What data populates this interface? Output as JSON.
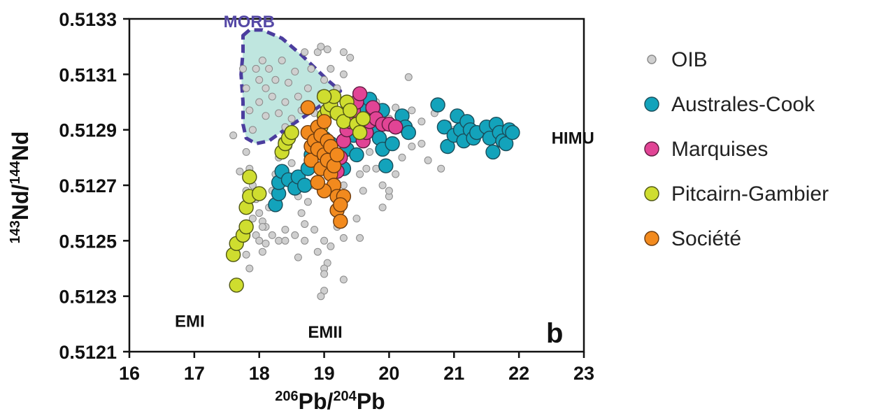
{
  "chart_data": {
    "type": "scatter",
    "xlabel": "206Pb/204Pb",
    "ylabel": "143Nd/144Nd",
    "xlim": [
      16,
      23
    ],
    "ylim": [
      0.5121,
      0.5133
    ],
    "x_ticks": [
      "16",
      "17",
      "18",
      "19",
      "20",
      "21",
      "22",
      "23"
    ],
    "y_ticks": [
      "0.5121",
      "0.5123",
      "0.5125",
      "0.5127",
      "0.5129",
      "0.5131",
      "0.5133"
    ],
    "panel_label": "b",
    "annotations": [
      {
        "text": "MORB",
        "x": 17.45,
        "y": 0.51327
      },
      {
        "text": "HIMU",
        "x": 22.5,
        "y": 0.51285
      },
      {
        "text": "EMI",
        "x": 16.7,
        "y": 0.51219
      },
      {
        "text": "EMII",
        "x": 18.75,
        "y": 0.51215
      }
    ],
    "morb_field": {
      "label": "MORB",
      "fill": "#bfe6df",
      "stroke": "#4b3d9e",
      "outline": [
        [
          17.75,
          0.51324
        ],
        [
          17.85,
          0.51326
        ],
        [
          18.05,
          0.51326
        ],
        [
          18.35,
          0.51323
        ],
        [
          18.65,
          0.51317
        ],
        [
          19.05,
          0.51308
        ],
        [
          19.25,
          0.51304
        ],
        [
          18.9,
          0.51298
        ],
        [
          18.45,
          0.51291
        ],
        [
          18.15,
          0.51286
        ],
        [
          17.95,
          0.51285
        ],
        [
          17.8,
          0.51287
        ],
        [
          17.75,
          0.51292
        ],
        [
          17.75,
          0.513
        ],
        [
          17.72,
          0.5131
        ],
        [
          17.75,
          0.51318
        ]
      ]
    },
    "series": [
      {
        "name": "OIB",
        "color": "#cfcfcf",
        "stroke": "#8a8a8a",
        "size": "small",
        "points": [
          [
            17.6,
            0.51288
          ],
          [
            17.75,
            0.51312
          ],
          [
            17.8,
            0.51305
          ],
          [
            17.85,
            0.51297
          ],
          [
            17.9,
            0.5129
          ],
          [
            17.95,
            0.51312
          ],
          [
            18.0,
            0.51308
          ],
          [
            18.0,
            0.513
          ],
          [
            18.05,
            0.51315
          ],
          [
            18.1,
            0.51305
          ],
          [
            18.1,
            0.51295
          ],
          [
            18.15,
            0.51312
          ],
          [
            18.2,
            0.51302
          ],
          [
            18.25,
            0.51308
          ],
          [
            18.3,
            0.51296
          ],
          [
            18.35,
            0.51315
          ],
          [
            18.4,
            0.513
          ],
          [
            18.45,
            0.51307
          ],
          [
            18.5,
            0.51294
          ],
          [
            18.55,
            0.51311
          ],
          [
            18.6,
            0.51302
          ],
          [
            18.65,
            0.51297
          ],
          [
            18.7,
            0.51318
          ],
          [
            18.75,
            0.51305
          ],
          [
            18.8,
            0.51312
          ],
          [
            18.85,
            0.51296
          ],
          [
            18.9,
            0.51318
          ],
          [
            18.95,
            0.51303
          ],
          [
            19.0,
            0.51308
          ],
          [
            19.05,
            0.513
          ],
          [
            19.1,
            0.51312
          ],
          [
            19.15,
            0.51296
          ],
          [
            19.2,
            0.51305
          ],
          [
            19.3,
            0.5131
          ],
          [
            19.4,
            0.51316
          ],
          [
            19.5,
            0.51302
          ],
          [
            19.6,
            0.51298
          ],
          [
            19.7,
            0.51295
          ],
          [
            19.8,
            0.513
          ],
          [
            19.9,
            0.51297
          ],
          [
            20.0,
            0.51294
          ],
          [
            20.1,
            0.51298
          ],
          [
            20.2,
            0.51295
          ],
          [
            20.35,
            0.51297
          ],
          [
            20.5,
            0.51293
          ],
          [
            20.7,
            0.51296
          ],
          [
            20.9,
            0.51292
          ],
          [
            21.0,
            0.5129
          ],
          [
            20.3,
            0.51309
          ],
          [
            19.3,
            0.51318
          ],
          [
            19.05,
            0.51319
          ],
          [
            18.95,
            0.5132
          ],
          [
            17.8,
            0.51282
          ],
          [
            17.85,
            0.51276
          ],
          [
            17.9,
            0.5127
          ],
          [
            17.95,
            0.51265
          ],
          [
            18.0,
            0.5126
          ],
          [
            18.05,
            0.51257
          ],
          [
            18.1,
            0.51255
          ],
          [
            18.15,
            0.51262
          ],
          [
            18.2,
            0.51268
          ],
          [
            18.25,
            0.51274
          ],
          [
            18.3,
            0.5128
          ],
          [
            18.35,
            0.51286
          ],
          [
            18.4,
            0.51291
          ],
          [
            18.45,
            0.51284
          ],
          [
            18.5,
            0.51278
          ],
          [
            18.55,
            0.51272
          ],
          [
            18.6,
            0.51266
          ],
          [
            18.65,
            0.5126
          ],
          [
            18.7,
            0.51256
          ],
          [
            18.75,
            0.51264
          ],
          [
            18.8,
            0.5127
          ],
          [
            18.85,
            0.51276
          ],
          [
            18.9,
            0.51282
          ],
          [
            18.95,
            0.51288
          ],
          [
            19.0,
            0.51292
          ],
          [
            19.05,
            0.51285
          ],
          [
            19.1,
            0.51279
          ],
          [
            19.15,
            0.51273
          ],
          [
            19.2,
            0.51268
          ],
          [
            19.25,
            0.51262
          ],
          [
            19.3,
            0.5127
          ],
          [
            19.35,
            0.51276
          ],
          [
            19.4,
            0.51282
          ],
          [
            19.45,
            0.51288
          ],
          [
            19.5,
            0.5128
          ],
          [
            19.55,
            0.51274
          ],
          [
            19.6,
            0.51268
          ],
          [
            19.65,
            0.51276
          ],
          [
            19.7,
            0.51282
          ],
          [
            19.8,
            0.51276
          ],
          [
            19.9,
            0.5127
          ],
          [
            20.0,
            0.51266
          ],
          [
            20.1,
            0.51274
          ],
          [
            20.2,
            0.5128
          ],
          [
            20.35,
            0.51284
          ],
          [
            20.5,
            0.51285
          ],
          [
            20.6,
            0.51279
          ],
          [
            20.8,
            0.51276
          ],
          [
            17.7,
            0.51275
          ],
          [
            17.8,
            0.51268
          ],
          [
            17.85,
            0.51262
          ],
          [
            17.9,
            0.51258
          ],
          [
            17.95,
            0.51252
          ],
          [
            18.0,
            0.5125
          ],
          [
            18.05,
            0.51255
          ],
          [
            18.1,
            0.51249
          ],
          [
            18.2,
            0.51252
          ],
          [
            18.3,
            0.5125
          ],
          [
            18.4,
            0.51254
          ],
          [
            18.55,
            0.51252
          ],
          [
            18.7,
            0.5125
          ],
          [
            18.85,
            0.51254
          ],
          [
            19.0,
            0.5125
          ],
          [
            19.1,
            0.51248
          ],
          [
            19.2,
            0.51255
          ],
          [
            19.3,
            0.51251
          ],
          [
            19.5,
            0.51258
          ],
          [
            19.55,
            0.51251
          ],
          [
            19.9,
            0.51262
          ],
          [
            20.0,
            0.51268
          ],
          [
            17.8,
            0.51245
          ],
          [
            17.85,
            0.5124
          ],
          [
            18.05,
            0.51246
          ],
          [
            18.4,
            0.5125
          ],
          [
            18.6,
            0.51244
          ],
          [
            18.9,
            0.51246
          ],
          [
            19.05,
            0.51242
          ],
          [
            19.0,
            0.5124
          ],
          [
            19.0,
            0.51238
          ],
          [
            19.0,
            0.51232
          ],
          [
            18.95,
            0.5123
          ],
          [
            19.3,
            0.51236
          ]
        ]
      },
      {
        "name": "Australes-Cook",
        "color": "#13a3bb",
        "stroke": "#1a4d5a",
        "size": "large",
        "points": [
          [
            18.25,
            0.51263
          ],
          [
            18.3,
            0.51267
          ],
          [
            18.3,
            0.51271
          ],
          [
            18.35,
            0.51275
          ],
          [
            18.45,
            0.51272
          ],
          [
            18.55,
            0.51269
          ],
          [
            18.6,
            0.51273
          ],
          [
            18.7,
            0.5127
          ],
          [
            18.75,
            0.51276
          ],
          [
            18.8,
            0.51281
          ],
          [
            18.9,
            0.51284
          ],
          [
            19.0,
            0.51287
          ],
          [
            19.1,
            0.51285
          ],
          [
            19.2,
            0.5128
          ],
          [
            19.3,
            0.51276
          ],
          [
            19.35,
            0.51283
          ],
          [
            19.45,
            0.51288
          ],
          [
            19.5,
            0.51281
          ],
          [
            19.55,
            0.51289
          ],
          [
            19.6,
            0.51293
          ],
          [
            19.65,
            0.51298
          ],
          [
            19.7,
            0.51301
          ],
          [
            19.75,
            0.51297
          ],
          [
            19.8,
            0.51291
          ],
          [
            19.85,
            0.51287
          ],
          [
            19.9,
            0.51283
          ],
          [
            19.95,
            0.51277
          ],
          [
            19.9,
            0.51297
          ],
          [
            20.05,
            0.51285
          ],
          [
            20.1,
            0.51291
          ],
          [
            20.2,
            0.51295
          ],
          [
            20.25,
            0.51291
          ],
          [
            20.3,
            0.51289
          ],
          [
            20.75,
            0.51299
          ],
          [
            20.85,
            0.51291
          ],
          [
            20.9,
            0.51284
          ],
          [
            21.0,
            0.51288
          ],
          [
            21.05,
            0.51295
          ],
          [
            21.1,
            0.5129
          ],
          [
            21.15,
            0.51286
          ],
          [
            21.2,
            0.51293
          ],
          [
            21.25,
            0.5129
          ],
          [
            21.3,
            0.51287
          ],
          [
            21.35,
            0.51289
          ],
          [
            21.5,
            0.51291
          ],
          [
            21.55,
            0.51287
          ],
          [
            21.6,
            0.51282
          ],
          [
            21.65,
            0.51292
          ],
          [
            21.7,
            0.51289
          ],
          [
            21.75,
            0.51286
          ],
          [
            21.8,
            0.51285
          ],
          [
            21.85,
            0.5129
          ],
          [
            21.9,
            0.51289
          ]
        ]
      },
      {
        "name": "Marquises",
        "color": "#e14495",
        "stroke": "#5e1a3f",
        "size": "large",
        "points": [
          [
            19.2,
            0.51275
          ],
          [
            19.25,
            0.5128
          ],
          [
            19.3,
            0.51286
          ],
          [
            19.35,
            0.5129
          ],
          [
            19.4,
            0.51293
          ],
          [
            19.45,
            0.51297
          ],
          [
            19.5,
            0.513
          ],
          [
            19.55,
            0.51303
          ],
          [
            19.6,
            0.51286
          ],
          [
            19.65,
            0.51289
          ],
          [
            19.7,
            0.51293
          ],
          [
            19.75,
            0.51298
          ],
          [
            19.8,
            0.51294
          ],
          [
            19.9,
            0.51292
          ],
          [
            20.0,
            0.51292
          ],
          [
            20.1,
            0.51291
          ]
        ]
      },
      {
        "name": "Pitcairn-Gambier",
        "color": "#cfdd2f",
        "stroke": "#4f5614",
        "size": "large",
        "points": [
          [
            17.65,
            0.51234
          ],
          [
            17.6,
            0.51245
          ],
          [
            17.65,
            0.51249
          ],
          [
            17.75,
            0.51252
          ],
          [
            17.8,
            0.51255
          ],
          [
            17.8,
            0.51262
          ],
          [
            17.85,
            0.51266
          ],
          [
            17.85,
            0.51273
          ],
          [
            18.0,
            0.51267
          ],
          [
            18.35,
            0.51282
          ],
          [
            18.4,
            0.51285
          ],
          [
            18.45,
            0.51287
          ],
          [
            18.5,
            0.51289
          ],
          [
            18.95,
            0.51291
          ],
          [
            19.0,
            0.51295
          ],
          [
            19.05,
            0.51297
          ],
          [
            19.1,
            0.51299
          ],
          [
            19.15,
            0.51302
          ],
          [
            19.2,
            0.51296
          ],
          [
            19.3,
            0.51293
          ],
          [
            19.35,
            0.513
          ],
          [
            19.4,
            0.51297
          ],
          [
            19.5,
            0.51292
          ],
          [
            19.55,
            0.51289
          ],
          [
            19.6,
            0.51294
          ],
          [
            19.0,
            0.51302
          ]
        ]
      },
      {
        "name": "Société",
        "color": "#f28a1e",
        "stroke": "#6b3a0e",
        "size": "large",
        "points": [
          [
            18.75,
            0.51298
          ],
          [
            18.75,
            0.51289
          ],
          [
            18.8,
            0.51284
          ],
          [
            18.8,
            0.51279
          ],
          [
            18.85,
            0.51286
          ],
          [
            18.9,
            0.51291
          ],
          [
            18.9,
            0.51283
          ],
          [
            18.95,
            0.51288
          ],
          [
            18.95,
            0.51276
          ],
          [
            19.0,
            0.51281
          ],
          [
            19.0,
            0.51293
          ],
          [
            19.05,
            0.51286
          ],
          [
            19.05,
            0.51279
          ],
          [
            19.1,
            0.51274
          ],
          [
            19.1,
            0.51284
          ],
          [
            19.15,
            0.51277
          ],
          [
            19.15,
            0.5127
          ],
          [
            19.2,
            0.51266
          ],
          [
            19.2,
            0.51261
          ],
          [
            19.25,
            0.51257
          ],
          [
            19.2,
            0.51281
          ],
          [
            19.0,
            0.51268
          ],
          [
            18.9,
            0.51271
          ],
          [
            19.3,
            0.51266
          ],
          [
            19.25,
            0.51263
          ]
        ]
      }
    ]
  }
}
